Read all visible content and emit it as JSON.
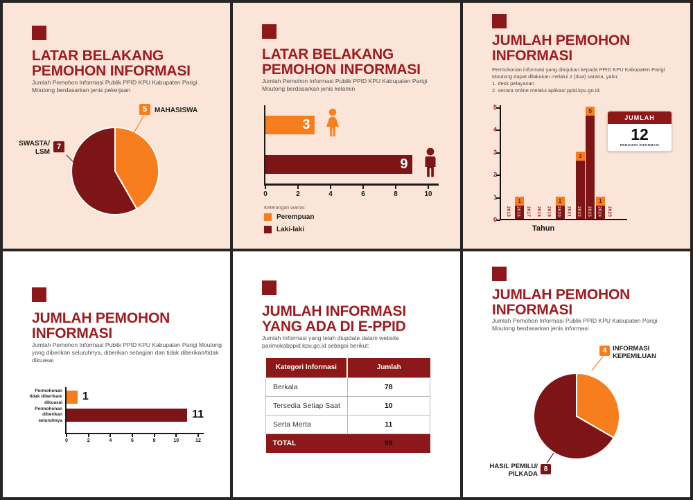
{
  "colors": {
    "orange": "#F87D1D",
    "dark_red": "#7D1517",
    "title_red": "#9E1C20",
    "header_red": "#8C181A",
    "peach_bg": "#FBE5D8",
    "white_bg": "#FFFFFF",
    "frame": "#262626"
  },
  "chart_data": [
    {
      "type": "pie",
      "panel": "top-left",
      "title": "LATAR BELAKANG PEMOHON INFORMASI",
      "labels": [
        "MAHASISWA",
        "SWASTA/LSM"
      ],
      "values": [
        5,
        7
      ],
      "colors": [
        "#F87D1D",
        "#7D1517"
      ]
    },
    {
      "type": "bar",
      "orientation": "horizontal",
      "panel": "top-middle",
      "title": "LATAR BELAKANG PEMOHON INFORMASI",
      "categories": [
        "Perempuan",
        "Laki-laki"
      ],
      "values": [
        3,
        9
      ],
      "colors": [
        "#F87D1D",
        "#7D1517"
      ],
      "xlim": [
        0,
        10
      ],
      "x_ticks": [
        0,
        2,
        4,
        6,
        8,
        10
      ],
      "legend_title": "Keterangan warna:"
    },
    {
      "type": "bar",
      "orientation": "vertical",
      "panel": "top-right",
      "title": "JUMLAH PEMOHON INFORMASI",
      "categories": [
        "2015",
        "2016",
        "2017",
        "2018",
        "2019",
        "2020",
        "2021",
        "2022",
        "2023",
        "2024",
        "2025"
      ],
      "values": [
        0,
        1,
        0,
        0,
        0,
        1,
        0,
        3,
        5,
        1,
        0
      ],
      "ylim": [
        0,
        5
      ],
      "y_ticks": [
        0,
        1,
        2,
        3,
        4,
        5
      ],
      "xlabel": "Tahun",
      "total_badge": {
        "header": "JUMLAH",
        "number": "12",
        "caption": "PEMOHON INFORMASI"
      }
    },
    {
      "type": "bar",
      "orientation": "horizontal",
      "panel": "bottom-left",
      "title": "JUMLAH PEMOHON INFORMASI",
      "categories": [
        "Permohonan tidak diberikan/dikuasai",
        "Permohonan diberikan seluruhnya"
      ],
      "values": [
        1,
        11
      ],
      "colors": [
        "#F87D1D",
        "#7D1517"
      ],
      "xlim": [
        0,
        12
      ],
      "x_ticks": [
        0,
        2,
        4,
        6,
        8,
        10,
        12
      ]
    },
    {
      "type": "table",
      "panel": "bottom-middle",
      "title": "JUMLAH INFORMASI YANG ADA DI E-PPID",
      "headers": [
        "Kategori Informasi",
        "Jumlah"
      ],
      "rows": [
        [
          "Berkala",
          "78"
        ],
        [
          "Tersedia Setiap Saat",
          "10"
        ],
        [
          "Serta Merta",
          "11"
        ]
      ],
      "total_row": [
        "TOTAL",
        "99"
      ]
    },
    {
      "type": "pie",
      "panel": "bottom-right",
      "title": "JUMLAH PEMOHON INFORMASI",
      "labels": [
        "INFORMASI KEPEMILUAN",
        "HASIL PEMILU/PILKADA"
      ],
      "values": [
        4,
        8
      ],
      "colors": [
        "#F87D1D",
        "#7D1517"
      ]
    }
  ],
  "panels": {
    "p1": {
      "title": "LATAR BELAKANG PEMOHON INFORMASI",
      "subtitle": "Jumlah Pemohon Informasi Publik PPID KPU Kabupaten Parigi Moutong berdasarkan jenis pekerjaan",
      "slice1_label": "MAHASISWA",
      "slice2_label": "SWASTA/\nLSM"
    },
    "p2": {
      "title": "LATAR BELAKANG PEMOHON INFORMASI",
      "subtitle": "Jumlah Pemohon Informasi Publik PPID KPU Kabupaten Parigi Moutong berdasarkan jenis kelamin"
    },
    "p3": {
      "title": "JUMLAH PEMOHON INFORMASI",
      "subtitle": "Permohonan informasi yang ditujukan kepada PPID KPU Kabupaten Parigi Moutong dapat dilakukan melalui 2 (dua) sarana, yaitu:\n1. desk pelayanan\n2. secara online melalui aplikasi ppid.kpu.go.id."
    },
    "p4": {
      "title": "JUMLAH PEMOHON INFORMASI",
      "subtitle": "Jumlah Pemohon Informasi Publik PPID KPU Kabupaten Parigi Moutong yang diberikan seluruhnya, diberikan sebagian dan tidak diberikan/tidak dikuasai",
      "cat1": "Permohonan\ntidak diberikan/\ndikuasai",
      "cat2": "Permohonan\ndiberikan\nseluruhnya"
    },
    "p5": {
      "title": "JUMLAH INFORMASI YANG ADA DI E-PPID",
      "subtitle": "Jumlah Informasi yang telah diupdate dalam website parimokabppid.kpu.go.id sebagai berikut:"
    },
    "p6": {
      "title": "JUMLAH PEMOHON INFORMASI",
      "subtitle": "Jumlah Pemohon Informasi Publik PPID KPU Kabupaten Parigi Moutong berdasarkan jenis informasi",
      "slice1_label": "INFORMASI\nKEPEMILUAN",
      "slice2_label": "HASIL PEMILU/\nPILKADA"
    }
  }
}
